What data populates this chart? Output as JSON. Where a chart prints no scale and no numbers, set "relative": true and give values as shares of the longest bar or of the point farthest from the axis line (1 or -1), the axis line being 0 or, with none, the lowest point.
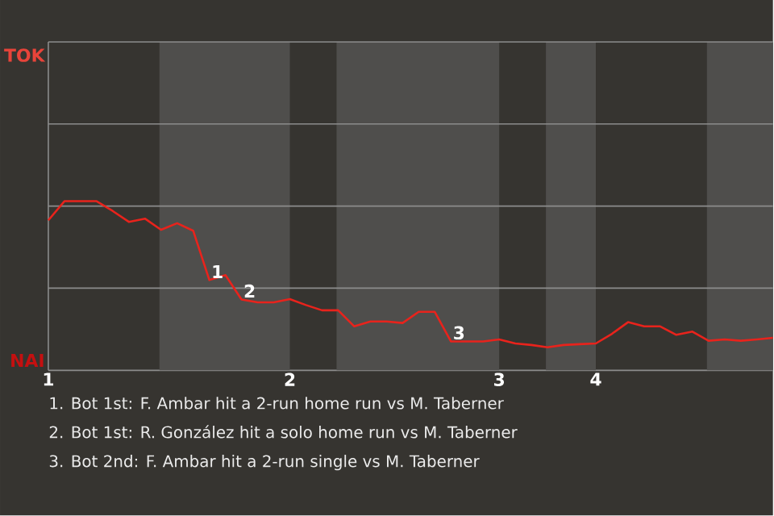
{
  "chart_data": {
    "type": "line",
    "relative": true,
    "categories": [
      "1",
      null,
      null,
      null,
      null,
      null,
      null,
      null,
      null,
      null,
      null,
      null,
      null,
      null,
      null,
      "2",
      null,
      null,
      null,
      null,
      null,
      null,
      null,
      null,
      null,
      null,
      null,
      null,
      "3",
      null,
      null,
      null,
      null,
      null,
      "4",
      null,
      null,
      null,
      null,
      null,
      null,
      null,
      null,
      null,
      null,
      null
    ],
    "series": [
      {
        "color": "#e8231c",
        "values": [
          0.887,
          1,
          1,
          1,
          0.942,
          0.878,
          0.897,
          0.831,
          0.87,
          0.825,
          0.534,
          0.563,
          0.419,
          0.402,
          0.402,
          0.421,
          0.386,
          0.355,
          0.355,
          0.26,
          0.289,
          0.289,
          0.28,
          0.346,
          0.346,
          0.171,
          0.171,
          0.171,
          0.183,
          0.159,
          0.15,
          0.136,
          0.15,
          0.155,
          0.159,
          0.216,
          0.285,
          0.26,
          0.26,
          0.21,
          0.229,
          0.175,
          0.183,
          0.175,
          0.183,
          0.192
        ]
      }
    ],
    "ref_lines": [
      {
        "axis": "y",
        "value": 0.486,
        "color": "#8c8c8c"
      },
      {
        "axis": "y",
        "value": 0.971,
        "color": "#8c8c8c"
      },
      {
        "axis": "y",
        "value": 1.457,
        "color": "#8c8c8c"
      }
    ],
    "annotations": [
      {
        "text": "1",
        "y": 0.534
      },
      {
        "text": "2",
        "y": 0.419
      },
      {
        "text": "3",
        "y": 0.171
      },
      "TOK",
      "NAI",
      "1. Bot 1st: F. Ambar hit a 2-run home run vs M. Taberner",
      "2. Bot 1st: R. González hit a solo home run vs M. Taberner",
      "3. Bot 2nd: F. Ambar hit a 2-run single vs M. Taberner"
    ]
  }
}
